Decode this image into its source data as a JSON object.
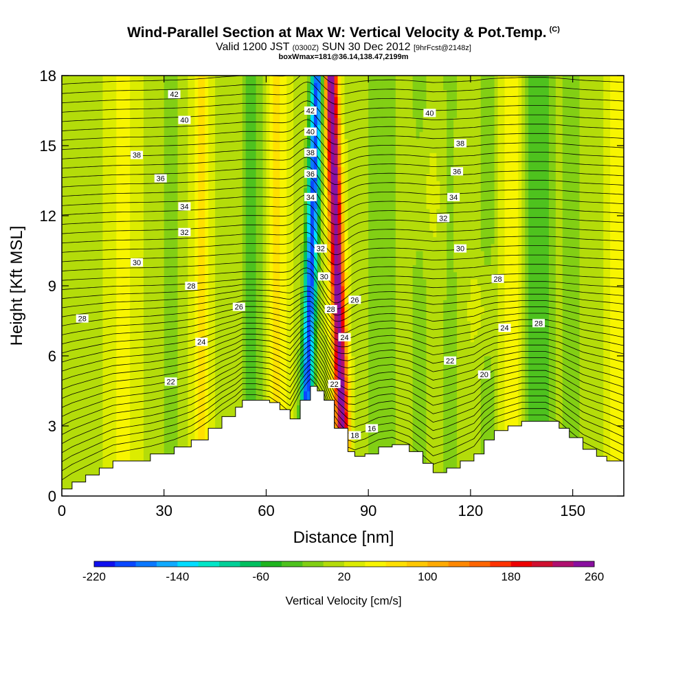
{
  "header": {
    "title": "Wind-Parallel Section at Max W: Vertical Velocity & Pot.Temp.",
    "copyright_mark": "(C)",
    "valid_prefix": "Valid 1200 JST",
    "valid_utc": "(0300Z)",
    "valid_date": "SUN 30 Dec 2012",
    "forecast": "[9hrFcst@2148z]",
    "box_info": "boxWmax=181@36.14,138.47,2199m"
  },
  "chart_data": {
    "type": "heatmap",
    "xlabel": "Distance [nm]",
    "ylabel": "Height [Kft MSL]",
    "xlim": [
      0,
      165
    ],
    "ylim": [
      0,
      18
    ],
    "x_ticks": [
      0,
      30,
      60,
      90,
      120,
      150
    ],
    "y_ticks": [
      0,
      3,
      6,
      9,
      12,
      15,
      18
    ],
    "colorbar": {
      "label": "Vertical Velocity [cm/s]",
      "min": -220,
      "max": 260,
      "step": 20,
      "tick_labels": [
        "-220",
        "-140",
        "-60",
        "20",
        "100",
        "180",
        "260"
      ],
      "colors": [
        "#1010ee",
        "#0a48ff",
        "#0a78ff",
        "#10aaff",
        "#00ddff",
        "#00e6c8",
        "#00d098",
        "#00c060",
        "#1fb41f",
        "#4ec21e",
        "#82cf14",
        "#b4dc0a",
        "#dcec00",
        "#f8f500",
        "#ffe000",
        "#ffc800",
        "#ffaa00",
        "#ff8800",
        "#ff6600",
        "#ff3300",
        "#ee0000",
        "#d01030",
        "#b01070",
        "#8a10a0"
      ]
    },
    "terrain": [
      [
        0,
        0.3
      ],
      [
        3,
        0.6
      ],
      [
        7,
        0.9
      ],
      [
        11,
        1.2
      ],
      [
        15,
        1.5
      ],
      [
        26,
        1.8
      ],
      [
        33,
        2.1
      ],
      [
        38,
        2.4
      ],
      [
        43,
        2.9
      ],
      [
        47,
        3.4
      ],
      [
        51,
        3.8
      ],
      [
        53,
        4.1
      ],
      [
        57,
        4.1
      ],
      [
        61,
        4.0
      ],
      [
        64,
        3.7
      ],
      [
        67,
        3.3
      ],
      [
        70,
        4.1
      ],
      [
        73,
        4.7
      ],
      [
        75,
        4.5
      ],
      [
        77,
        4.1
      ],
      [
        80,
        2.9
      ],
      [
        84,
        1.9
      ],
      [
        86,
        1.7
      ],
      [
        89,
        1.8
      ],
      [
        93,
        2.1
      ],
      [
        97,
        2.2
      ],
      [
        102,
        1.9
      ],
      [
        106,
        1.4
      ],
      [
        109,
        1.0
      ],
      [
        113,
        1.2
      ],
      [
        117,
        1.5
      ],
      [
        121,
        1.8
      ],
      [
        124,
        2.4
      ],
      [
        127,
        2.8
      ],
      [
        131,
        3.0
      ],
      [
        135,
        3.2
      ],
      [
        142,
        3.2
      ],
      [
        146,
        2.9
      ],
      [
        149,
        2.5
      ],
      [
        153,
        2.0
      ],
      [
        157,
        1.7
      ],
      [
        160,
        1.5
      ],
      [
        165,
        1.1
      ]
    ],
    "updraft_core": {
      "x0": 83,
      "x1": 79,
      "w_max": 250
    },
    "downdraft_core": {
      "x0": 71,
      "x1": 75,
      "w_min": -210
    },
    "theta_contour_labels": [
      {
        "x": 33,
        "y": 17.2,
        "v": "42"
      },
      {
        "x": 36,
        "y": 16.1,
        "v": "40"
      },
      {
        "x": 22,
        "y": 14.6,
        "v": "38"
      },
      {
        "x": 29,
        "y": 13.6,
        "v": "36"
      },
      {
        "x": 36,
        "y": 12.4,
        "v": "34"
      },
      {
        "x": 36,
        "y": 11.3,
        "v": "32"
      },
      {
        "x": 22,
        "y": 10.0,
        "v": "30"
      },
      {
        "x": 38,
        "y": 9.0,
        "v": "28"
      },
      {
        "x": 6,
        "y": 7.6,
        "v": "28"
      },
      {
        "x": 52,
        "y": 8.1,
        "v": "26"
      },
      {
        "x": 41,
        "y": 6.6,
        "v": "24"
      },
      {
        "x": 32,
        "y": 4.9,
        "v": "22"
      },
      {
        "x": 73,
        "y": 16.5,
        "v": "42"
      },
      {
        "x": 73,
        "y": 15.6,
        "v": "40"
      },
      {
        "x": 73,
        "y": 14.7,
        "v": "38"
      },
      {
        "x": 73,
        "y": 13.8,
        "v": "36"
      },
      {
        "x": 73,
        "y": 12.8,
        "v": "34"
      },
      {
        "x": 76,
        "y": 10.6,
        "v": "32"
      },
      {
        "x": 77,
        "y": 9.4,
        "v": "30"
      },
      {
        "x": 79,
        "y": 8.0,
        "v": "28"
      },
      {
        "x": 86,
        "y": 8.4,
        "v": "26"
      },
      {
        "x": 83,
        "y": 6.8,
        "v": "24"
      },
      {
        "x": 80,
        "y": 4.8,
        "v": "22"
      },
      {
        "x": 86,
        "y": 2.6,
        "v": "18"
      },
      {
        "x": 91,
        "y": 2.9,
        "v": "16"
      },
      {
        "x": 108,
        "y": 16.4,
        "v": "40"
      },
      {
        "x": 117,
        "y": 15.1,
        "v": "38"
      },
      {
        "x": 116,
        "y": 13.9,
        "v": "36"
      },
      {
        "x": 115,
        "y": 12.8,
        "v": "34"
      },
      {
        "x": 112,
        "y": 11.9,
        "v": "32"
      },
      {
        "x": 117,
        "y": 10.6,
        "v": "30"
      },
      {
        "x": 128,
        "y": 9.3,
        "v": "28"
      },
      {
        "x": 140,
        "y": 7.4,
        "v": "28"
      },
      {
        "x": 130,
        "y": 7.2,
        "v": "24"
      },
      {
        "x": 114,
        "y": 5.8,
        "v": "22"
      },
      {
        "x": 124,
        "y": 5.2,
        "v": "20"
      }
    ]
  }
}
